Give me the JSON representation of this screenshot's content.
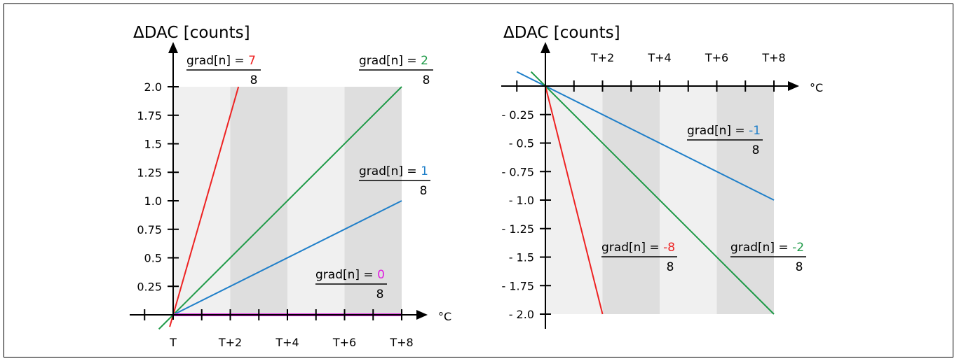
{
  "chart_data": [
    {
      "type": "line",
      "ylabel": "ΔDAC [counts]",
      "x_unit": "°C",
      "x_ticks": [
        "T",
        "T+2",
        "T+4",
        "T+6",
        "T+8"
      ],
      "y_ticks": [
        "0.25",
        "0.5",
        "0.75",
        "1.0",
        "1.25",
        "1.5",
        "1.75",
        "2.0"
      ],
      "xlim": [
        0,
        8
      ],
      "ylim": [
        0,
        2.0
      ],
      "series": [
        {
          "gradient": "7",
          "color": "#ee2222",
          "x": [
            0,
            2.286
          ],
          "y": [
            0,
            2.0
          ]
        },
        {
          "gradient": "2",
          "color": "#1e9a47",
          "x": [
            0,
            8
          ],
          "y": [
            0,
            2.0
          ]
        },
        {
          "gradient": "1",
          "color": "#1f7fc9",
          "x": [
            0,
            8
          ],
          "y": [
            0,
            1.0
          ]
        },
        {
          "gradient": "0",
          "color": "#e020e0",
          "x": [
            0,
            8
          ],
          "y": [
            0,
            0
          ]
        }
      ],
      "annotations": [
        {
          "prefix": "grad[n] = ",
          "value": "7",
          "denominator": "8",
          "color": "#ee2222"
        },
        {
          "prefix": "grad[n] = ",
          "value": "2",
          "denominator": "8",
          "color": "#1e9a47"
        },
        {
          "prefix": "grad[n] = ",
          "value": "1",
          "denominator": "8",
          "color": "#1f7fc9"
        },
        {
          "prefix": "grad[n] = ",
          "value": "0",
          "denominator": "8",
          "color": "#e020e0"
        }
      ]
    },
    {
      "type": "line",
      "ylabel": "ΔDAC [counts]",
      "x_unit": "°C",
      "x_ticks": [
        "T+2",
        "T+4",
        "T+6",
        "T+8"
      ],
      "y_ticks": [
        "- 0.25",
        "- 0.5",
        "- 0.75",
        "- 1.0",
        "- 1.25",
        "- 1.5",
        "- 1.75",
        "- 2.0"
      ],
      "xlim": [
        0,
        8
      ],
      "ylim": [
        -2.0,
        0
      ],
      "series": [
        {
          "gradient": "-1",
          "color": "#1f7fc9",
          "x": [
            0,
            8
          ],
          "y": [
            0,
            -1.0
          ]
        },
        {
          "gradient": "-2",
          "color": "#1e9a47",
          "x": [
            0,
            8
          ],
          "y": [
            0,
            -2.0
          ]
        },
        {
          "gradient": "-8",
          "color": "#ee2222",
          "x": [
            0,
            2
          ],
          "y": [
            0,
            -2.0
          ]
        }
      ],
      "annotations": [
        {
          "prefix": "grad[n] = ",
          "value": "-1",
          "denominator": "8",
          "color": "#1f7fc9"
        },
        {
          "prefix": "grad[n] = ",
          "value": "-8",
          "denominator": "8",
          "color": "#ee2222"
        },
        {
          "prefix": "grad[n] = ",
          "value": "-2",
          "denominator": "8",
          "color": "#1e9a47"
        }
      ]
    }
  ]
}
